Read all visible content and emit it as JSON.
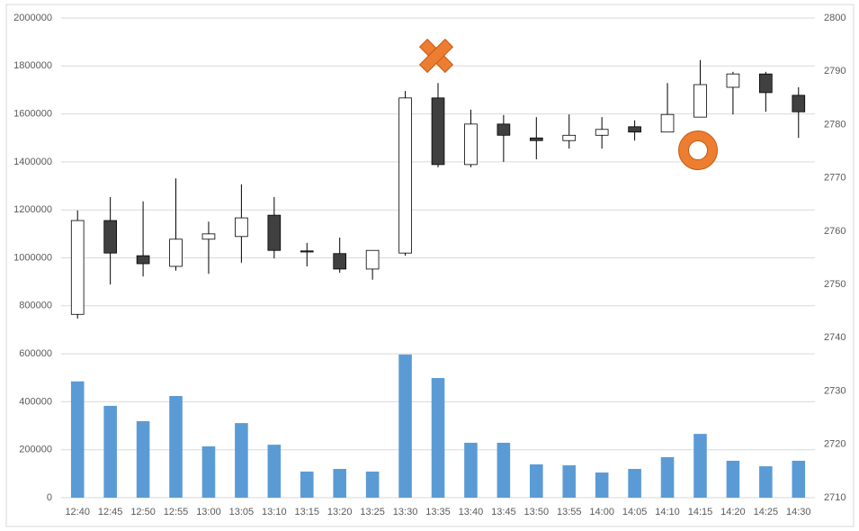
{
  "chart_data": {
    "type": "candlestick",
    "categories": [
      "12:40",
      "12:45",
      "12:50",
      "12:55",
      "13:00",
      "13:05",
      "13:10",
      "13:15",
      "13:20",
      "13:25",
      "13:30",
      "13:35",
      "13:40",
      "13:45",
      "13:50",
      "13:55",
      "14:00",
      "14:05",
      "14:10",
      "14:15",
      "14:20",
      "14:25",
      "14:30"
    ],
    "series": [
      {
        "type": "bar",
        "color": "#5b9bd5",
        "values": [
          485000,
          383000,
          319000,
          424000,
          214000,
          311000,
          221000,
          109000,
          120000,
          109000,
          597000,
          499000,
          229000,
          229000,
          139000,
          135000,
          105000,
          120000,
          169000,
          266000,
          154000,
          131000,
          154000
        ]
      },
      {
        "type": "candlestick",
        "axis": "y2",
        "up_color": "#ffffff",
        "down_color": "#404040",
        "open": [
          2744.4,
          2762.0,
          2755.4,
          2753.4,
          2758.5,
          2759.0,
          2763.0,
          2756.3,
          2755.8,
          2752.9,
          2755.9,
          2785.0,
          2772.5,
          2780.1,
          2777.5,
          2777.0,
          2778.0,
          2779.6,
          2778.6,
          2781.4,
          2787.0,
          2789.5,
          2785.5
        ],
        "high": [
          2763.9,
          2766.4,
          2765.6,
          2769.9,
          2761.8,
          2768.8,
          2766.4,
          2757.8,
          2758.8,
          2756.4,
          2786.3,
          2787.8,
          2782.8,
          2781.8,
          2781.4,
          2781.9,
          2781.4,
          2780.8,
          2787.8,
          2792.1,
          2789.9,
          2789.9,
          2787.0
        ],
        "low": [
          2743.6,
          2750.0,
          2751.5,
          2752.6,
          2752.0,
          2754.1,
          2754.9,
          2753.4,
          2752.2,
          2750.9,
          2755.4,
          2772.0,
          2772.0,
          2773.0,
          2773.5,
          2775.5,
          2775.5,
          2777.0,
          2778.6,
          2781.4,
          2781.9,
          2782.4,
          2777.5
        ],
        "close": [
          2762.0,
          2755.9,
          2753.9,
          2758.5,
          2759.5,
          2762.5,
          2756.4,
          2756.1,
          2752.9,
          2756.4,
          2785.0,
          2772.5,
          2780.1,
          2778.0,
          2777.0,
          2778.0,
          2779.1,
          2778.6,
          2781.9,
          2787.5,
          2789.5,
          2786.0,
          2782.4
        ]
      }
    ],
    "ylim": [
      0,
      2000000
    ],
    "yticks": [
      0,
      200000,
      400000,
      600000,
      800000,
      1000000,
      1200000,
      1400000,
      1600000,
      1800000,
      2000000
    ],
    "y2lim": [
      2710,
      2800
    ],
    "y2ticks": [
      2710,
      2720,
      2730,
      2740,
      2750,
      2760,
      2770,
      2780,
      2790,
      2800
    ],
    "grid": true
  }
}
